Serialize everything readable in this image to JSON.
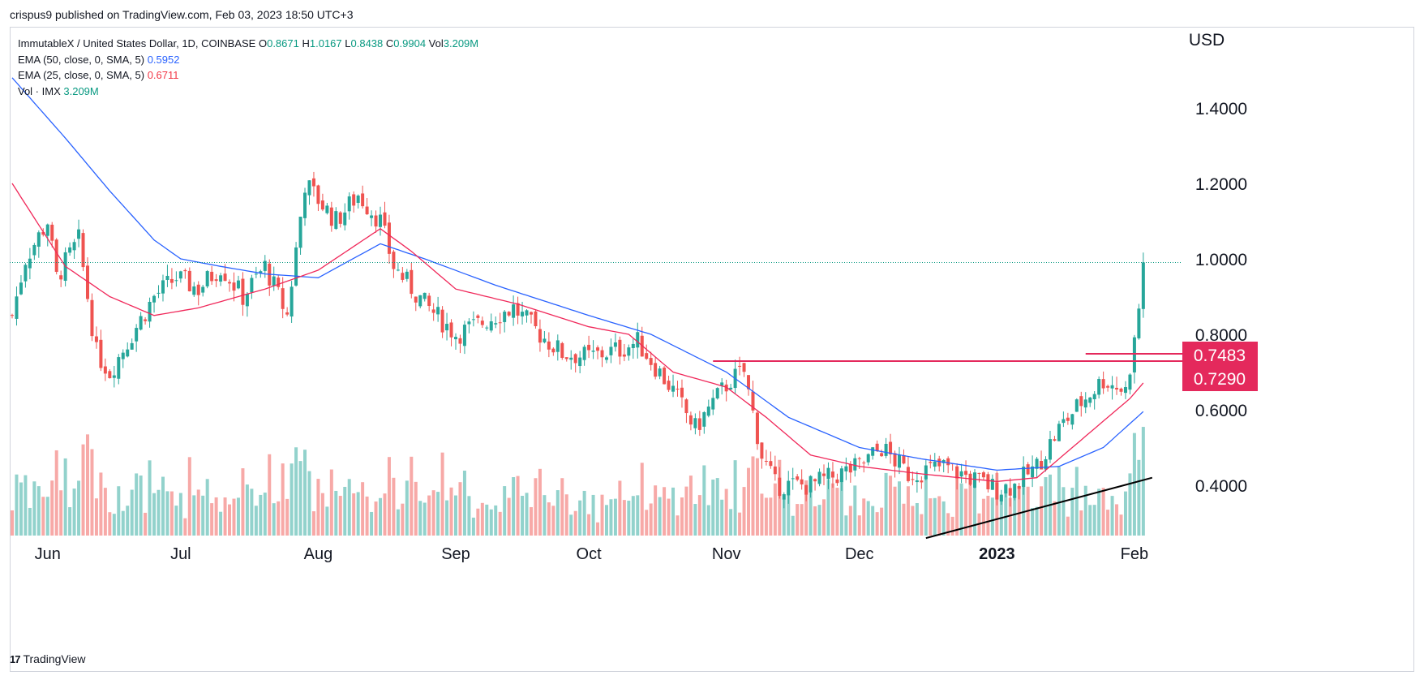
{
  "header": {
    "published": "crispus9 published on TradingView.com, Feb 03, 2023 18:50 UTC+3"
  },
  "legend": {
    "symbol": "ImmutableX / United States Dollar, 1D, COINBASE",
    "o_label": "O",
    "o_value": "0.8671",
    "h_label": "H",
    "h_value": "1.0167",
    "l_label": "L",
    "l_value": "0.8438",
    "c_label": "C",
    "c_value": "0.9904",
    "vol_label": "Vol",
    "vol_value": "3.209M",
    "ema50_label": "EMA (50, close, 0, SMA, 5)",
    "ema50_value": "0.5952",
    "ema25_label": "EMA (25, close, 0, SMA, 5)",
    "ema25_value": "0.6711",
    "vol_ind_label": "Vol · IMX",
    "vol_ind_value": "3.209M"
  },
  "footer": {
    "brand": "TradingView",
    "logo": "17"
  },
  "colors": {
    "up": "#26a69a",
    "down": "#ef5350",
    "up_vol": "#92d2cc",
    "down_vol": "#f7a9a7",
    "ema50": "#2962ff",
    "ema25": "#f0285a",
    "level_line": "#e4295c",
    "trend_line": "#000000",
    "price_line": "#089981"
  },
  "chart_data": {
    "type": "candlestick",
    "currency": "USD",
    "y_ticks": [
      "1.4000",
      "1.2000",
      "1.0000",
      "0.8000",
      "0.6000",
      "0.4000"
    ],
    "y_tick_values": [
      1.4,
      1.2,
      1.0,
      0.8,
      0.6,
      0.4
    ],
    "x_labels": [
      "Jun",
      "Jul",
      "Aug",
      "Sep",
      "Oct",
      "Nov",
      "Dec",
      "2023",
      "Feb"
    ],
    "x_label_dates": [
      "2022-06-01",
      "2022-07-01",
      "2022-08-01",
      "2022-09-01",
      "2022-10-01",
      "2022-11-01",
      "2022-12-01",
      "2023-01-01",
      "2023-02-01"
    ],
    "date_range": [
      "2022-05-24",
      "2023-02-03"
    ],
    "last_price": 0.9904,
    "levels": [
      {
        "label": "0.7483",
        "value": 0.7483,
        "from": "2023-01-21",
        "to": "2023-02-03"
      },
      {
        "label": "0.7290",
        "value": 0.729,
        "from": "2022-10-29",
        "to": "2023-02-03"
      }
    ],
    "trendline": {
      "from_date": "2022-12-16",
      "to_date": "2023-02-05",
      "y_from": 0.26,
      "y_to": 0.42
    },
    "ema25_anchors": [
      [
        "2022-05-24",
        1.2
      ],
      [
        "2022-06-05",
        0.98
      ],
      [
        "2022-06-15",
        0.9
      ],
      [
        "2022-06-25",
        0.85
      ],
      [
        "2022-07-05",
        0.87
      ],
      [
        "2022-07-20",
        0.92
      ],
      [
        "2022-08-01",
        0.97
      ],
      [
        "2022-08-15",
        1.08
      ],
      [
        "2022-08-22",
        1.02
      ],
      [
        "2022-09-01",
        0.92
      ],
      [
        "2022-09-15",
        0.88
      ],
      [
        "2022-10-01",
        0.82
      ],
      [
        "2022-10-10",
        0.8
      ],
      [
        "2022-10-20",
        0.7
      ],
      [
        "2022-11-01",
        0.66
      ],
      [
        "2022-11-10",
        0.58
      ],
      [
        "2022-11-20",
        0.48
      ],
      [
        "2022-12-01",
        0.45
      ],
      [
        "2022-12-15",
        0.43
      ],
      [
        "2023-01-01",
        0.41
      ],
      [
        "2023-01-10",
        0.42
      ],
      [
        "2023-01-20",
        0.52
      ],
      [
        "2023-01-31",
        0.63
      ],
      [
        "2023-02-03",
        0.6711
      ]
    ],
    "ema50_anchors": [
      [
        "2022-05-24",
        1.48
      ],
      [
        "2022-06-05",
        1.32
      ],
      [
        "2022-06-15",
        1.18
      ],
      [
        "2022-06-25",
        1.05
      ],
      [
        "2022-07-01",
        1.0
      ],
      [
        "2022-07-10",
        0.98
      ],
      [
        "2022-07-20",
        0.96
      ],
      [
        "2022-08-01",
        0.95
      ],
      [
        "2022-08-15",
        1.04
      ],
      [
        "2022-08-25",
        1.0
      ],
      [
        "2022-09-10",
        0.93
      ],
      [
        "2022-10-01",
        0.85
      ],
      [
        "2022-10-15",
        0.8
      ],
      [
        "2022-11-01",
        0.7
      ],
      [
        "2022-11-15",
        0.58
      ],
      [
        "2022-12-01",
        0.5
      ],
      [
        "2022-12-15",
        0.47
      ],
      [
        "2023-01-01",
        0.44
      ],
      [
        "2023-01-15",
        0.45
      ],
      [
        "2023-01-25",
        0.5
      ],
      [
        "2023-02-03",
        0.5952
      ]
    ],
    "close_anchors": [
      [
        "2022-05-24",
        0.85
      ],
      [
        "2022-05-27",
        1.0
      ],
      [
        "2022-06-01",
        1.1
      ],
      [
        "2022-06-03",
        0.95
      ],
      [
        "2022-06-08",
        1.05
      ],
      [
        "2022-06-12",
        0.75
      ],
      [
        "2022-06-15",
        0.7
      ],
      [
        "2022-06-19",
        0.78
      ],
      [
        "2022-06-25",
        0.9
      ],
      [
        "2022-06-30",
        0.95
      ],
      [
        "2022-07-05",
        0.92
      ],
      [
        "2022-07-10",
        0.98
      ],
      [
        "2022-07-15",
        0.9
      ],
      [
        "2022-07-20",
        0.98
      ],
      [
        "2022-07-25",
        0.85
      ],
      [
        "2022-07-29",
        1.2
      ],
      [
        "2022-08-05",
        1.1
      ],
      [
        "2022-08-10",
        1.17
      ],
      [
        "2022-08-15",
        1.1
      ],
      [
        "2022-08-18",
        0.98
      ],
      [
        "2022-08-25",
        0.88
      ],
      [
        "2022-09-01",
        0.8
      ],
      [
        "2022-09-05",
        0.82
      ],
      [
        "2022-09-10",
        0.85
      ],
      [
        "2022-09-14",
        0.87
      ],
      [
        "2022-09-20",
        0.8
      ],
      [
        "2022-09-25",
        0.75
      ],
      [
        "2022-10-01",
        0.74
      ],
      [
        "2022-10-08",
        0.76
      ],
      [
        "2022-10-12",
        0.78
      ],
      [
        "2022-10-20",
        0.65
      ],
      [
        "2022-10-25",
        0.55
      ],
      [
        "2022-10-29",
        0.62
      ],
      [
        "2022-11-02",
        0.68
      ],
      [
        "2022-11-05",
        0.7
      ],
      [
        "2022-11-09",
        0.48
      ],
      [
        "2022-11-12",
        0.4
      ],
      [
        "2022-11-20",
        0.4
      ],
      [
        "2022-12-01",
        0.45
      ],
      [
        "2022-12-06",
        0.5
      ],
      [
        "2022-12-12",
        0.43
      ],
      [
        "2022-12-20",
        0.45
      ],
      [
        "2023-01-01",
        0.39
      ],
      [
        "2023-01-05",
        0.4
      ],
      [
        "2023-01-10",
        0.45
      ],
      [
        "2023-01-15",
        0.55
      ],
      [
        "2023-01-20",
        0.62
      ],
      [
        "2023-01-25",
        0.68
      ],
      [
        "2023-01-30",
        0.65
      ],
      [
        "2023-02-01",
        0.78
      ],
      [
        "2023-02-02",
        0.87
      ],
      [
        "2023-02-03",
        0.9904
      ]
    ]
  }
}
